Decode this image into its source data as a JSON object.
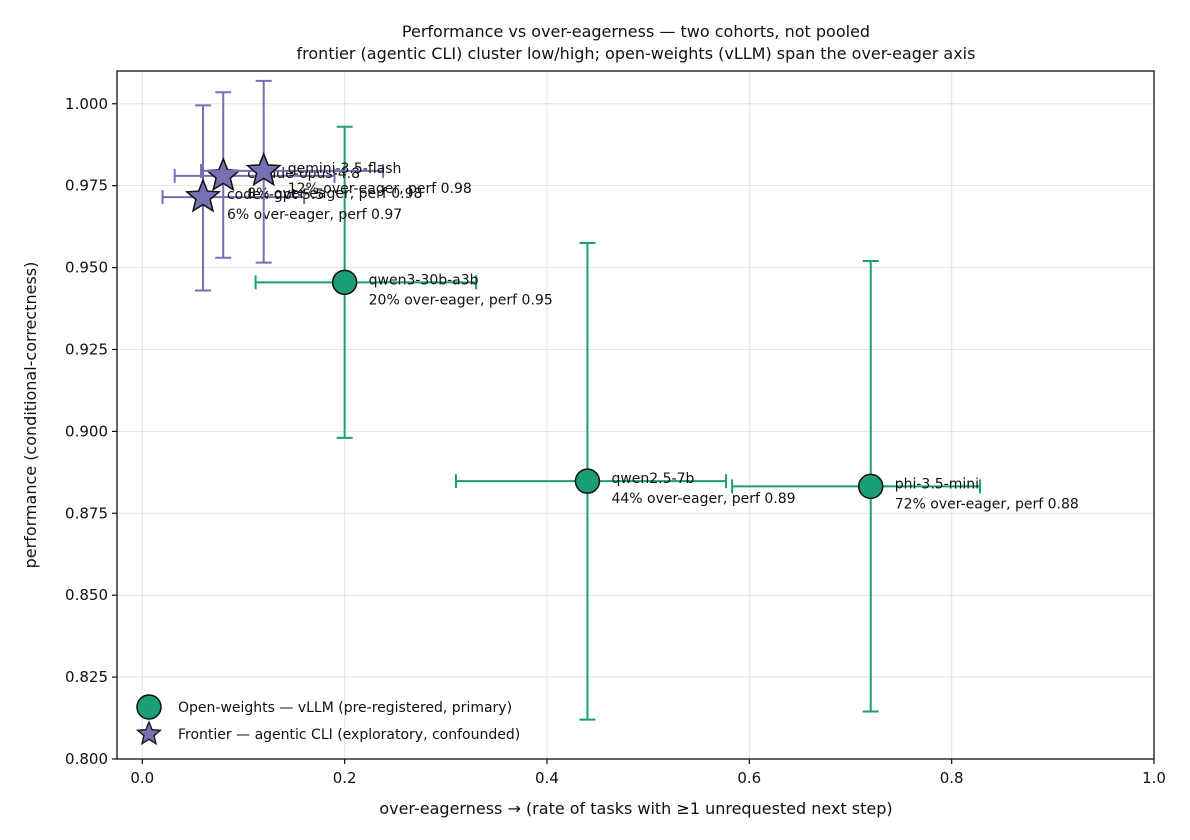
{
  "chart_data": {
    "type": "scatter",
    "title": "Performance vs over-eagerness — two cohorts, not pooled",
    "subtitle": "frontier (agentic CLI) cluster low/high; open-weights (vLLM) span the over-eager axis",
    "xlabel": "over-eagerness  →  (rate of tasks with ≥1 unrequested next step)",
    "ylabel": "performance (conditional-correctness)",
    "xlim": [
      -0.025,
      1.0
    ],
    "ylim": [
      0.8,
      1.01
    ],
    "xticks": [
      0.0,
      0.2,
      0.4,
      0.6,
      0.8,
      1.0
    ],
    "xtick_labels": [
      "0.0",
      "0.2",
      "0.4",
      "0.6",
      "0.8",
      "1.0"
    ],
    "yticks": [
      0.8,
      0.825,
      0.85,
      0.875,
      0.9,
      0.925,
      0.95,
      0.975,
      1.0
    ],
    "ytick_labels": [
      "0.800",
      "0.825",
      "0.850",
      "0.875",
      "0.900",
      "0.925",
      "0.950",
      "0.975",
      "1.000"
    ],
    "grid": true,
    "legend_position": "lower-left",
    "series": [
      {
        "name": "Open-weights — vLLM (pre-registered, primary)",
        "marker": "circle",
        "color": "#1b9e77",
        "points": [
          {
            "model": "qwen3-30b-a3b",
            "note": "20% over-eager, perf 0.95",
            "x": 0.2,
            "y": 0.9455,
            "x_err": [
              0.112,
              0.33
            ],
            "y_err": [
              0.898,
              0.993
            ]
          },
          {
            "model": "qwen2.5-7b",
            "note": "44% over-eager, perf 0.89",
            "x": 0.44,
            "y": 0.8848,
            "x_err": [
              0.31,
              0.577
            ],
            "y_err": [
              0.812,
              0.9575
            ]
          },
          {
            "model": "phi-3.5-mini",
            "note": "72% over-eager, perf 0.88",
            "x": 0.72,
            "y": 0.8832,
            "x_err": [
              0.583,
              0.828
            ],
            "y_err": [
              0.8145,
              0.952
            ]
          }
        ]
      },
      {
        "name": "Frontier — agentic CLI (exploratory, confounded)",
        "marker": "star",
        "color": "#7570b3",
        "points": [
          {
            "model": "codex-gpt-5.5",
            "note": "6% over-eager, perf 0.97",
            "x": 0.06,
            "y": 0.9715,
            "x_err": [
              0.02,
              0.16
            ],
            "y_err": [
              0.943,
              0.9995
            ]
          },
          {
            "model": "claude-opus-4.8",
            "note": "8% over-eager, perf 0.98",
            "x": 0.08,
            "y": 0.978,
            "x_err": [
              0.032,
              0.19
            ],
            "y_err": [
              0.953,
              1.0035
            ]
          },
          {
            "model": "gemini-3.5-flash",
            "note": "12% over-eager, perf 0.98",
            "x": 0.12,
            "y": 0.9795,
            "x_err": [
              0.058,
              0.238
            ],
            "y_err": [
              0.9515,
              1.007
            ]
          }
        ]
      }
    ]
  }
}
